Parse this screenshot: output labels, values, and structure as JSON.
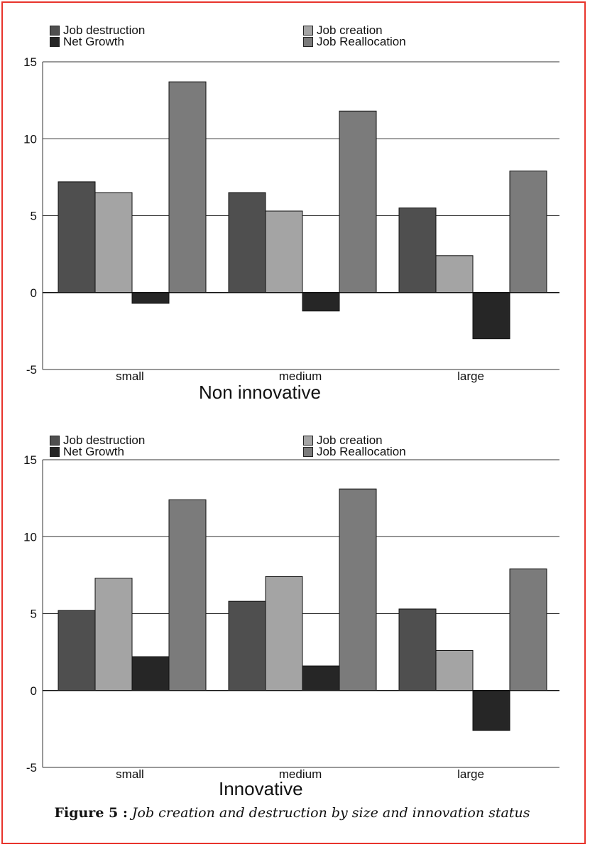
{
  "colors": {
    "job_destruction": "#4f4f4f",
    "job_creation": "#a4a4a4",
    "net_growth": "#262626",
    "job_reallocation": "#7b7b7b",
    "frame": "#e8342c"
  },
  "caption": {
    "label": "Figure 5 :",
    "text": "Job creation and destruction by size and innovation status"
  },
  "chart_data": [
    {
      "type": "bar",
      "title": "Non innovative",
      "categories": [
        "small",
        "medium",
        "large"
      ],
      "series": [
        {
          "name": "Job destruction",
          "values": [
            7.2,
            6.5,
            5.5
          ]
        },
        {
          "name": "Job creation",
          "values": [
            6.5,
            5.3,
            2.4
          ]
        },
        {
          "name": "Net Growth",
          "values": [
            -0.7,
            -1.2,
            -3.0
          ]
        },
        {
          "name": "Job Reallocation",
          "values": [
            13.7,
            11.8,
            7.9
          ]
        }
      ],
      "ylim": [
        -5,
        15
      ],
      "yticks": [
        "15",
        "10",
        "5",
        "0",
        "-5"
      ],
      "grid": true,
      "legend": "top"
    },
    {
      "type": "bar",
      "title": "Innovative",
      "categories": [
        "small",
        "medium",
        "large"
      ],
      "series": [
        {
          "name": "Job destruction",
          "values": [
            5.2,
            5.8,
            5.3
          ]
        },
        {
          "name": "Job creation",
          "values": [
            7.3,
            7.4,
            2.6
          ]
        },
        {
          "name": "Net Growth",
          "values": [
            2.2,
            1.6,
            -2.6
          ]
        },
        {
          "name": "Job Reallocation",
          "values": [
            12.4,
            13.1,
            7.9
          ]
        }
      ],
      "ylim": [
        -5,
        15
      ],
      "yticks": [
        "15",
        "10",
        "5",
        "0",
        "-5"
      ],
      "grid": true,
      "legend": "top"
    }
  ]
}
